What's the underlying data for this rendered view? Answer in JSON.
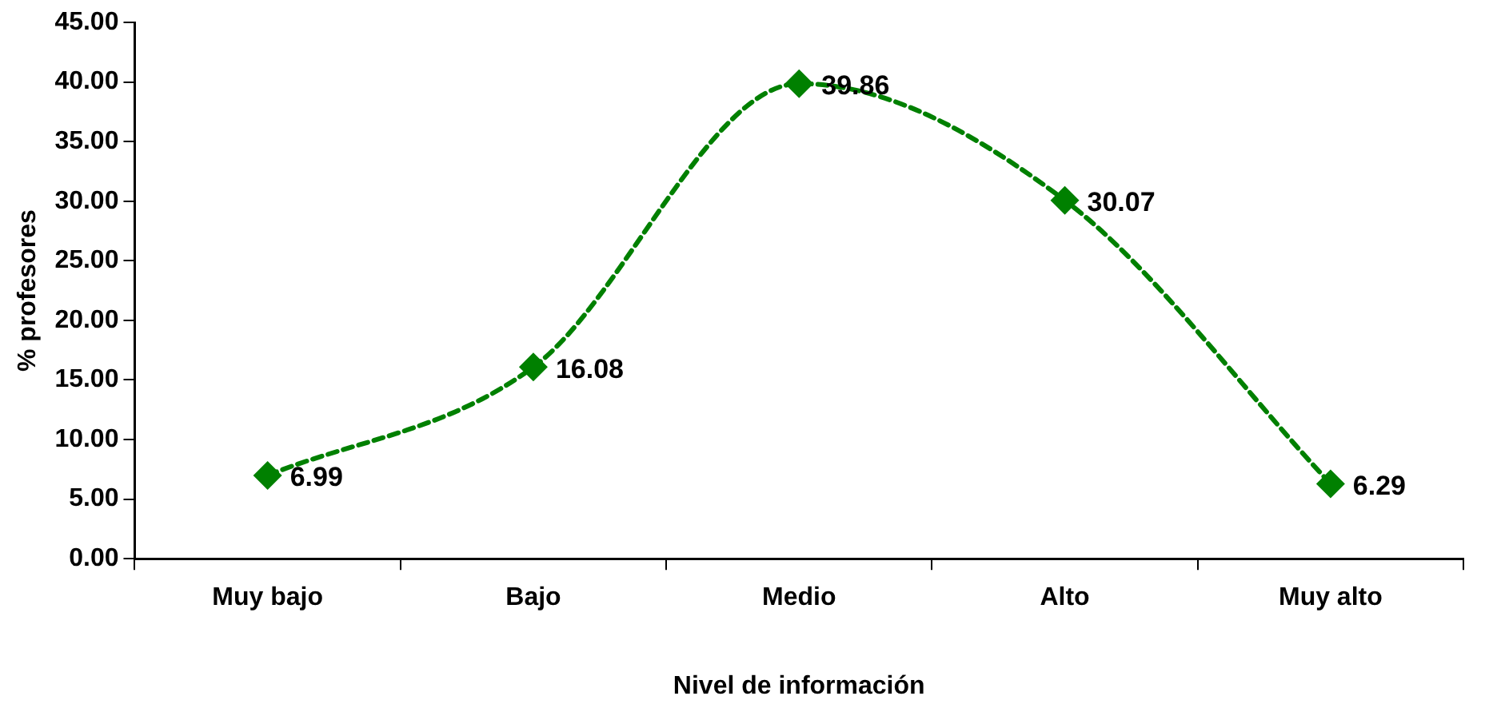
{
  "chart_data": {
    "type": "line",
    "xlabel": "Nivel de información",
    "ylabel": "% profesores",
    "categories": [
      "Muy bajo",
      "Bajo",
      "Medio",
      "Alto",
      "Muy alto"
    ],
    "series": [
      {
        "color": "#008000",
        "values": [
          6.99,
          16.08,
          39.86,
          30.07,
          6.29
        ]
      }
    ],
    "ylim": [
      0,
      45
    ],
    "yticks": [
      {
        "value": 0,
        "label": "0.00"
      },
      {
        "value": 5,
        "label": "5.00"
      },
      {
        "value": 10,
        "label": "10.00"
      },
      {
        "value": 15,
        "label": "15.00"
      },
      {
        "value": 20,
        "label": "20.00"
      },
      {
        "value": 25,
        "label": "25.00"
      },
      {
        "value": 30,
        "label": "30.00"
      },
      {
        "value": 35,
        "label": "35.00"
      },
      {
        "value": 40,
        "label": "40.00"
      },
      {
        "value": 45,
        "label": "45.00"
      }
    ],
    "grid": false,
    "legend": false,
    "marker": "diamond",
    "line_style": "dashed",
    "data_labels": true
  }
}
